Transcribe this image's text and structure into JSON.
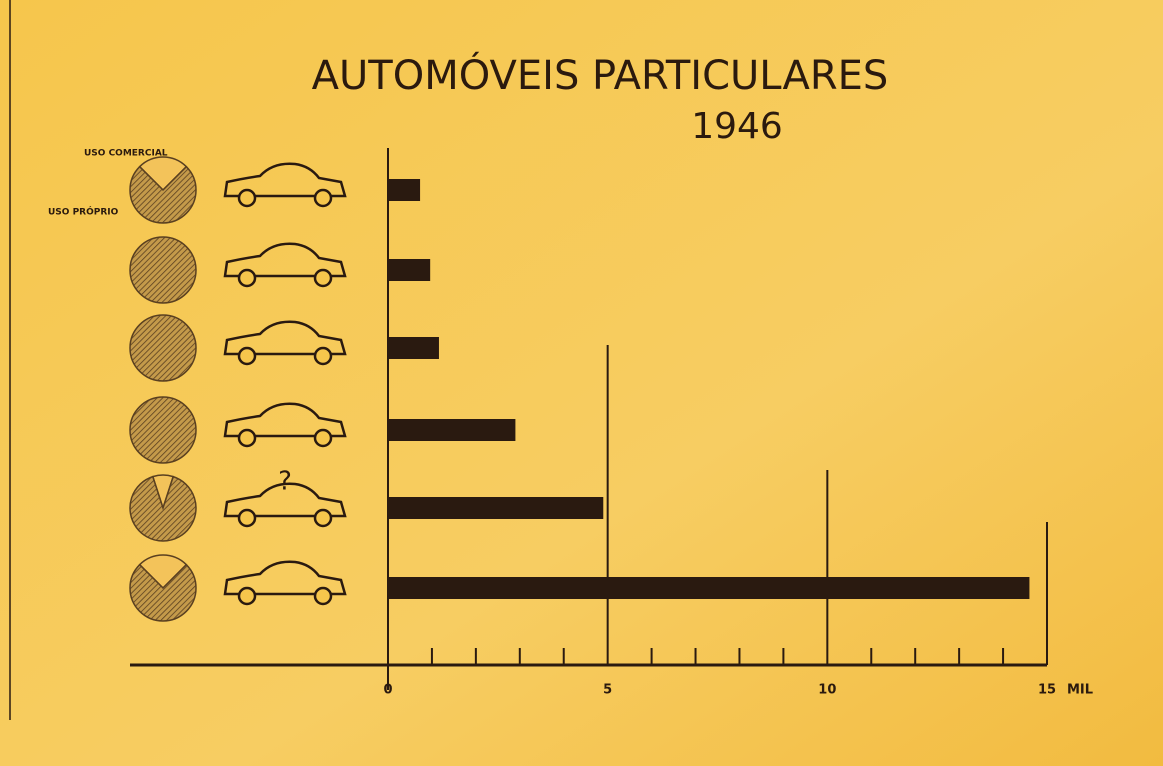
{
  "chart_data": {
    "type": "bar",
    "orientation": "horizontal",
    "title": "AUTOMÓVEIS PARTICULARES",
    "subtitle": "1946",
    "categories": [
      null,
      null,
      null,
      null,
      null,
      null
    ],
    "values": [
      0.73,
      0.96,
      1.16,
      2.9,
      4.9,
      14.6
    ],
    "color": "#2a1a10",
    "xlim": [
      0,
      15
    ],
    "xticks": [
      0,
      5,
      10,
      15
    ],
    "xminor_ticks": [
      1,
      2,
      3,
      4,
      6,
      7,
      8,
      9,
      11,
      12,
      13,
      14
    ],
    "x_unit": "MIL",
    "pie_series": [
      {
        "name": "USO COMERCIAL",
        "color": "#f3c35a",
        "values": [
          25,
          0,
          0,
          0,
          10,
          25
        ]
      },
      {
        "name": "USO PRÓPRIO",
        "color": "#8a6a3a",
        "values": [
          75,
          100,
          100,
          100,
          90,
          75
        ]
      }
    ]
  }
}
